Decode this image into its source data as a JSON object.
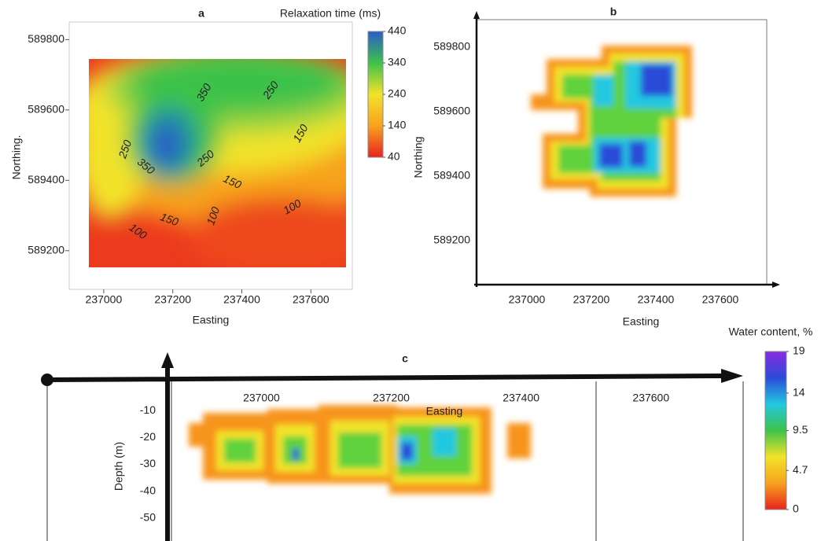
{
  "chart_data": [
    {
      "type": "heatmap",
      "title": "a",
      "xlabel": "Easting",
      "ylabel": "Northing.",
      "xlim": [
        236900,
        237720
      ],
      "ylim": [
        589090,
        589850
      ],
      "xticks": [
        237000,
        237200,
        237400,
        237600
      ],
      "yticks": [
        589200,
        589400,
        589600,
        589800
      ],
      "contour_labels": [
        350,
        250,
        150,
        250,
        350,
        250,
        150,
        100,
        150,
        100,
        100
      ],
      "colorbar": {
        "title": "Relaxation time (ms)",
        "clim": [
          40,
          440
        ],
        "ticks": [
          440,
          340,
          240,
          140,
          40
        ],
        "colors": [
          "#e8231e",
          "#f7a21e",
          "#f2e32a",
          "#3ec24a",
          "#2a5cc8"
        ]
      }
    },
    {
      "type": "heatmap",
      "title": "b",
      "xlabel": "Easting",
      "ylabel": "Northing",
      "xlim": [
        236844,
        237744
      ],
      "ylim": [
        589063,
        589885
      ],
      "xticks": [
        237000,
        237200,
        237400,
        237600
      ],
      "yticks": [
        589200,
        589400,
        589600,
        589800
      ]
    },
    {
      "type": "heatmap",
      "title": "c",
      "xlabel": "Easting",
      "ylabel": "Depth (m)",
      "xlim": [
        236670,
        237742
      ],
      "ylim": [
        -58,
        0
      ],
      "xticks": [
        237000,
        237200,
        237400,
        237600
      ],
      "yticks": [
        -10,
        -20,
        -30,
        -40,
        -50
      ],
      "colorbar": {
        "title": "Water content, %",
        "clim": [
          0,
          19
        ],
        "ticks": [
          19,
          14,
          9.5,
          4.7,
          0
        ],
        "colors": [
          "#e8231e",
          "#f7a21e",
          "#f2e32a",
          "#3ec24a",
          "#22c8e0",
          "#2a4cd8",
          "#8a2be2"
        ]
      }
    }
  ]
}
